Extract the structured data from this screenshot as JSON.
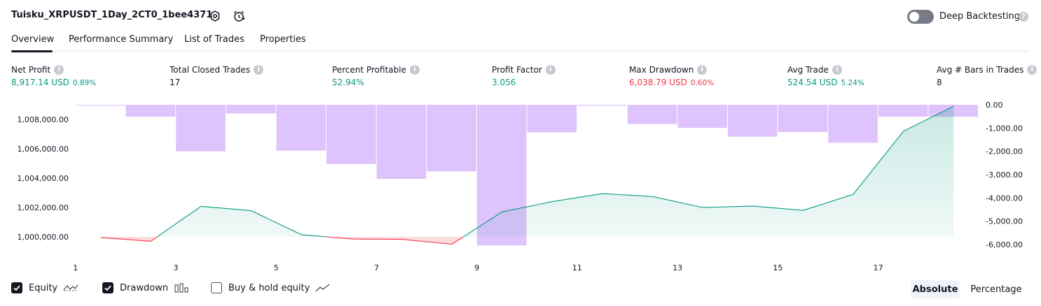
{
  "header": {
    "title": "Tuisku_XRPUSDT_1Day_2CT0_1bee4371",
    "deep_backtesting_label": "Deep Backtesting",
    "deep_backtesting_enabled": false,
    "help_glyph": "?"
  },
  "tabs": [
    {
      "label": "Overview",
      "active": true
    },
    {
      "label": "Performance Summary",
      "active": false
    },
    {
      "label": "List of Trades",
      "active": false
    },
    {
      "label": "Properties",
      "active": false
    }
  ],
  "metrics": [
    {
      "label": "Net Profit",
      "value": "8,917.14 USD",
      "pct": "0.89%",
      "color": "#089981"
    },
    {
      "label": "Total Closed Trades",
      "value": "17",
      "pct": "",
      "color": "#131722"
    },
    {
      "label": "Percent Profitable",
      "value": "52.94%",
      "pct": "",
      "color": "#089981"
    },
    {
      "label": "Profit Factor",
      "value": "3.056",
      "pct": "",
      "color": "#089981"
    },
    {
      "label": "Max Drawdown",
      "value": "6,038.79 USD",
      "pct": "0.60%",
      "color": "#f23645"
    },
    {
      "label": "Avg Trade",
      "value": "524.54 USD",
      "pct": "5.24%",
      "color": "#089981"
    },
    {
      "label": "Avg # Bars in Trades",
      "value": "8",
      "pct": "",
      "color": "#131722"
    }
  ],
  "chart_data": {
    "type": "line",
    "x": [
      1,
      2,
      3,
      4,
      5,
      6,
      7,
      8,
      9,
      10,
      11,
      12,
      13,
      14,
      15,
      16,
      17,
      18
    ],
    "x_ticks": [
      "1",
      "3",
      "5",
      "7",
      "9",
      "11",
      "13",
      "15",
      "17"
    ],
    "left_axis": {
      "ticks": [
        "1,008,000.00",
        "1,006,000.00",
        "1,004,000.00",
        "1,002,000.00",
        "1,000,000.00"
      ],
      "tick_values": [
        1008000,
        1006000,
        1004000,
        1002000,
        1000000
      ],
      "range": [
        999000,
        1009000
      ]
    },
    "right_axis": {
      "ticks": [
        "0.00",
        "-1,000.00",
        "-2,000.00",
        "-3,000.00",
        "-4,000.00",
        "-5,000.00",
        "-6,000.00"
      ],
      "tick_values": [
        0,
        -1000,
        -2000,
        -3000,
        -4000,
        -5000,
        -6000
      ],
      "range": [
        -6300,
        0
      ]
    },
    "baseline": 1000000,
    "series": [
      {
        "name": "Equity",
        "type": "line",
        "values": [
          999950,
          999700,
          1002080,
          1001780,
          1000150,
          999850,
          999830,
          999500,
          1001700,
          1002400,
          1002950,
          1002750,
          1002000,
          1002100,
          1001800,
          1002900,
          1007200,
          1008900
        ],
        "color_up": "#089981",
        "color_down": "#f23645"
      },
      {
        "name": "Drawdown",
        "type": "bar",
        "values": [
          -10,
          -510,
          -2000,
          -370,
          -1970,
          -2540,
          -3180,
          -2860,
          -6038.79,
          -1180,
          -40,
          -830,
          -990,
          -1370,
          -1170,
          -1630,
          -510,
          -510
        ],
        "color": "#d9b8fb"
      }
    ]
  },
  "legend": [
    {
      "label": "Equity",
      "checked": true,
      "icon": "equity-line-icon"
    },
    {
      "label": "Drawdown",
      "checked": true,
      "icon": "drawdown-bars-icon"
    },
    {
      "label": "Buy & hold equity",
      "checked": false,
      "icon": "buy-hold-line-icon"
    }
  ],
  "view_toggle": {
    "absolute": "Absolute",
    "percentage": "Percentage",
    "selected": "absolute"
  }
}
